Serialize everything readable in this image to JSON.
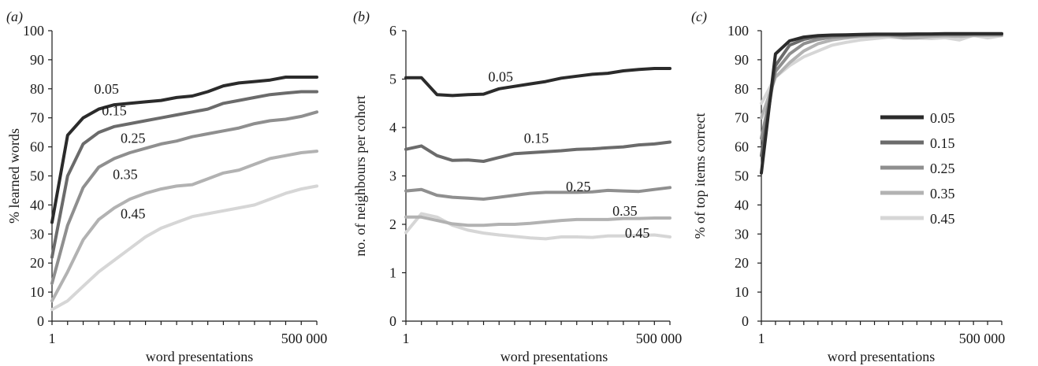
{
  "chart_data": [
    {
      "type": "line",
      "panel_label": "(a)",
      "xlabel": "word presentations",
      "ylabel": "% learned words",
      "x_tick_labels": [
        "1",
        "500 000"
      ],
      "ylim": [
        0,
        100
      ],
      "y_ticks": [
        0,
        10,
        20,
        30,
        40,
        50,
        60,
        70,
        80,
        90,
        100
      ],
      "legend": "inline",
      "grid": false,
      "series": [
        {
          "name": "0.05",
          "color": "#2b2b2b",
          "values": [
            34,
            64,
            70,
            73,
            74.5,
            75,
            75.5,
            76,
            77,
            77.5,
            79,
            81,
            82,
            82.5,
            83,
            84,
            84,
            84
          ]
        },
        {
          "name": "0.15",
          "color": "#6b6b6b",
          "values": [
            22,
            50,
            61,
            65,
            67,
            68,
            69,
            70,
            71,
            72,
            73,
            75,
            76,
            77,
            78,
            78.5,
            79,
            79
          ]
        },
        {
          "name": "0.25",
          "color": "#8f8f8f",
          "values": [
            13,
            33,
            46,
            53,
            56,
            58,
            59.5,
            61,
            62,
            63.5,
            64.5,
            65.5,
            66.5,
            68,
            69,
            69.5,
            70.5,
            72
          ]
        },
        {
          "name": "0.35",
          "color": "#b2b2b2",
          "values": [
            7,
            17,
            28,
            35,
            39,
            42,
            44,
            45.5,
            46.5,
            47,
            49,
            51,
            52,
            54,
            56,
            57,
            58,
            58.5
          ]
        },
        {
          "name": "0.45",
          "color": "#d6d6d6",
          "values": [
            4,
            7,
            12,
            17,
            21,
            25,
            29,
            32,
            34,
            36,
            37,
            38,
            39,
            40,
            42,
            44,
            45.5,
            46.5
          ]
        }
      ],
      "series_labels": [
        {
          "text": "0.05",
          "at": [
            3.5,
            80
          ]
        },
        {
          "text": "0.15",
          "at": [
            4,
            72.5
          ]
        },
        {
          "text": "0.25",
          "at": [
            5.2,
            63
          ]
        },
        {
          "text": "0.35",
          "at": [
            4.7,
            50.5
          ]
        },
        {
          "text": "0.45",
          "at": [
            5.2,
            37
          ]
        }
      ]
    },
    {
      "type": "line",
      "panel_label": "(b)",
      "xlabel": "word presentations",
      "ylabel": "no. of neighbours per cohort",
      "x_tick_labels": [
        "1",
        "500 000"
      ],
      "ylim": [
        0,
        6
      ],
      "y_ticks": [
        0,
        1,
        2,
        3,
        4,
        5,
        6
      ],
      "legend": "inline",
      "grid": false,
      "series": [
        {
          "name": "0.05",
          "color": "#2b2b2b",
          "values": [
            5.03,
            5.03,
            4.68,
            4.66,
            4.68,
            4.69,
            4.8,
            4.85,
            4.9,
            4.95,
            5.02,
            5.06,
            5.1,
            5.12,
            5.17,
            5.2,
            5.22,
            5.22
          ]
        },
        {
          "name": "0.15",
          "color": "#6b6b6b",
          "values": [
            3.55,
            3.62,
            3.42,
            3.32,
            3.33,
            3.3,
            3.38,
            3.46,
            3.48,
            3.5,
            3.52,
            3.55,
            3.56,
            3.58,
            3.6,
            3.64,
            3.66,
            3.7
          ]
        },
        {
          "name": "0.25",
          "color": "#8f8f8f",
          "values": [
            2.69,
            2.72,
            2.6,
            2.56,
            2.54,
            2.52,
            2.56,
            2.6,
            2.64,
            2.66,
            2.66,
            2.66,
            2.67,
            2.7,
            2.69,
            2.68,
            2.72,
            2.76
          ]
        },
        {
          "name": "0.35",
          "color": "#b2b2b2",
          "values": [
            2.15,
            2.15,
            2.08,
            2.01,
            1.98,
            1.98,
            2.0,
            2.0,
            2.02,
            2.05,
            2.08,
            2.1,
            2.1,
            2.1,
            2.12,
            2.12,
            2.13,
            2.13
          ]
        },
        {
          "name": "0.45",
          "color": "#d6d6d6",
          "values": [
            1.83,
            2.22,
            2.15,
            1.98,
            1.88,
            1.82,
            1.78,
            1.75,
            1.72,
            1.7,
            1.74,
            1.74,
            1.73,
            1.76,
            1.76,
            1.77,
            1.78,
            1.74
          ]
        }
      ],
      "series_labels": [
        {
          "text": "0.05",
          "at": [
            6.1,
            5.05
          ]
        },
        {
          "text": "0.15",
          "at": [
            8.4,
            3.78
          ]
        },
        {
          "text": "0.25",
          "at": [
            11.1,
            2.78
          ]
        },
        {
          "text": "0.35",
          "at": [
            14.1,
            2.28
          ]
        },
        {
          "text": "0.45",
          "at": [
            14.9,
            1.82
          ]
        }
      ]
    },
    {
      "type": "line",
      "panel_label": "(c)",
      "xlabel": "word presentations",
      "ylabel": "% of top items correct",
      "x_tick_labels": [
        "1",
        "500 000"
      ],
      "ylim": [
        0,
        100
      ],
      "y_ticks": [
        0,
        10,
        20,
        30,
        40,
        50,
        60,
        70,
        80,
        90,
        100
      ],
      "legend": "right",
      "grid": false,
      "series": [
        {
          "name": "0.05",
          "color": "#2b2b2b",
          "values": [
            51,
            92,
            96.5,
            97.8,
            98.3,
            98.5,
            98.6,
            98.7,
            98.8,
            98.8,
            98.8,
            98.9,
            98.9,
            99,
            99,
            99,
            99,
            99
          ]
        },
        {
          "name": "0.15",
          "color": "#6b6b6b",
          "values": [
            57,
            88,
            95,
            97,
            98,
            98.3,
            98.4,
            98.6,
            98.7,
            98.7,
            98.5,
            98.7,
            98.8,
            98.8,
            98.8,
            98.9,
            98.9,
            98.9
          ]
        },
        {
          "name": "0.25",
          "color": "#8f8f8f",
          "values": [
            63,
            86,
            92,
            95.5,
            97,
            97.8,
            98,
            98.3,
            98.5,
            98.5,
            98.3,
            98.5,
            98.5,
            98.6,
            98.6,
            98.7,
            98.7,
            98.7
          ]
        },
        {
          "name": "0.35",
          "color": "#b2b2b2",
          "values": [
            70,
            84,
            89,
            93,
            95.5,
            96.8,
            97.5,
            98,
            98.2,
            98.3,
            97.5,
            97.5,
            98,
            98.2,
            98,
            98.3,
            98.4,
            98.4
          ]
        },
        {
          "name": "0.45",
          "color": "#d6d6d6",
          "values": [
            75,
            84,
            88,
            91,
            93,
            95,
            96,
            96.8,
            97.3,
            97.8,
            97.5,
            97.5,
            97.3,
            97.6,
            96.8,
            98.4,
            97.5,
            98.3
          ]
        }
      ]
    }
  ]
}
